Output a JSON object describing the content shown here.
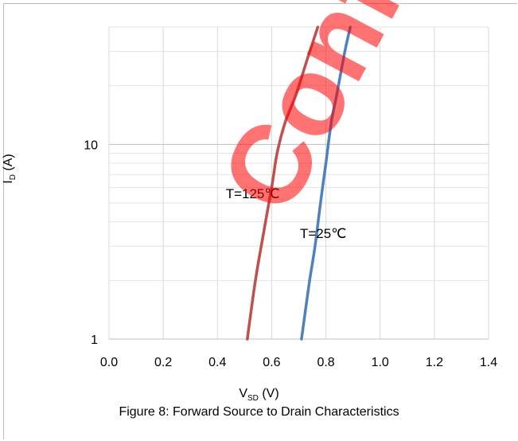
{
  "chart_data": {
    "type": "line",
    "x_scale": "linear",
    "y_scale": "log",
    "xlim": [
      0.0,
      1.4
    ],
    "ylim": [
      1,
      40
    ],
    "x_ticks": [
      "0.0",
      "0.2",
      "0.4",
      "0.6",
      "0.8",
      "1.0",
      "1.2",
      "1.4"
    ],
    "y_ticks": [
      "1",
      "10"
    ],
    "xlabel_main": "V",
    "xlabel_sub": "SD",
    "xlabel_unit": " (V)",
    "ylabel_main": "I",
    "ylabel_sub": "D",
    "ylabel_unit": " (A)",
    "grid": true,
    "caption": "Figure 8: Forward Source to Drain Characteristics",
    "series": [
      {
        "name": "T=125℃",
        "color": "#c0504d",
        "x": [
          0.51,
          0.54,
          0.57,
          0.6,
          0.62,
          0.65,
          0.69,
          0.73,
          0.77
        ],
        "y": [
          1,
          2,
          3.5,
          6,
          9,
          13,
          18,
          27,
          40
        ]
      },
      {
        "name": "T=25℃",
        "color": "#4f81bd",
        "x": [
          0.71,
          0.74,
          0.76,
          0.78,
          0.8,
          0.82,
          0.84,
          0.87,
          0.89
        ],
        "y": [
          1,
          2,
          3,
          5,
          8,
          13,
          18,
          30,
          40
        ]
      }
    ],
    "annotations": [
      {
        "text": "T=125℃",
        "x": 0.53,
        "y": 5.3
      },
      {
        "text": "T=25℃",
        "x": 0.79,
        "y": 3.3
      }
    ]
  },
  "watermark": "Confidential"
}
